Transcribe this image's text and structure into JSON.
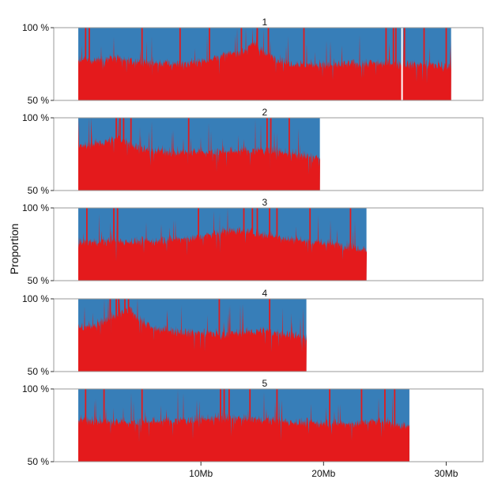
{
  "chart_data": {
    "type": "area",
    "ylabel": "Proportion",
    "ylim": [
      50,
      100
    ],
    "y_ticks": [
      "50 %",
      "100 %"
    ],
    "xlim_mb": [
      -2,
      33
    ],
    "x_ticks": [
      {
        "value": 10,
        "label": "10Mb"
      },
      {
        "value": 20,
        "label": "20Mb"
      },
      {
        "value": 30,
        "label": "30Mb"
      }
    ],
    "colors": {
      "lower": "#e41a1c",
      "upper": "#377eb8",
      "frame": "#999999"
    },
    "legend": "none",
    "grid": false,
    "panels": [
      {
        "title": "1",
        "length_mb": 30.4,
        "mean_pct": 77,
        "profile": [
          [
            0,
            77
          ],
          [
            2.9,
            79
          ],
          [
            5,
            76
          ],
          [
            9,
            75
          ],
          [
            13.5,
            84
          ],
          [
            14.3,
            90
          ],
          [
            15.2,
            82
          ],
          [
            17,
            76
          ],
          [
            20,
            74
          ],
          [
            24,
            76
          ],
          [
            27,
            75
          ],
          [
            30.4,
            74
          ]
        ],
        "gaps_mb": [
          26.4
        ],
        "full_red_mb": [
          0.6,
          0.9,
          5.2,
          8.3,
          10.7,
          13.3,
          14.6,
          15.5,
          18.4,
          25.1,
          25.7,
          25.9,
          26.6,
          28.2,
          30.0
        ]
      },
      {
        "title": "2",
        "length_mb": 19.7,
        "mean_pct": 76,
        "profile": [
          [
            0,
            80
          ],
          [
            2.5,
            84
          ],
          [
            3.4,
            86
          ],
          [
            5,
            79
          ],
          [
            8,
            76
          ],
          [
            12,
            77
          ],
          [
            15.5,
            78
          ],
          [
            17.5,
            75
          ],
          [
            19.7,
            72
          ]
        ],
        "gaps_mb": [],
        "full_red_mb": [
          3.1,
          3.4,
          3.7,
          4.3,
          9.0,
          15.4,
          15.7,
          17.2
        ]
      },
      {
        "title": "3",
        "length_mb": 23.5,
        "mean_pct": 77,
        "profile": [
          [
            0,
            76
          ],
          [
            2,
            77
          ],
          [
            6,
            77
          ],
          [
            10,
            80
          ],
          [
            12.5,
            85
          ],
          [
            14.5,
            83
          ],
          [
            17,
            79
          ],
          [
            20,
            76
          ],
          [
            23.5,
            72
          ]
        ],
        "gaps_mb": [],
        "full_red_mb": [
          0.7,
          2.9,
          3.2,
          9.8,
          13.5,
          14.2,
          14.6,
          15.6,
          16.2,
          18.9,
          22.2
        ]
      },
      {
        "title": "4",
        "length_mb": 18.6,
        "mean_pct": 78,
        "profile": [
          [
            0,
            80
          ],
          [
            1.5,
            82
          ],
          [
            3,
            88
          ],
          [
            4.2,
            92
          ],
          [
            6,
            80
          ],
          [
            9,
            77
          ],
          [
            12,
            76
          ],
          [
            15,
            78
          ],
          [
            18.6,
            74
          ]
        ],
        "gaps_mb": [],
        "full_red_mb": [
          2.6,
          3.1,
          3.3,
          3.8,
          4.1,
          11.5,
          15.6
        ]
      },
      {
        "title": "5",
        "length_mb": 27.0,
        "mean_pct": 77,
        "profile": [
          [
            0,
            79
          ],
          [
            3,
            77
          ],
          [
            7,
            78
          ],
          [
            11.5,
            80
          ],
          [
            15,
            79
          ],
          [
            18,
            77
          ],
          [
            22,
            76
          ],
          [
            24.5,
            78
          ],
          [
            27,
            74
          ]
        ],
        "gaps_mb": [],
        "full_red_mb": [
          0.6,
          2.1,
          5.2,
          11.6,
          11.9,
          12.3,
          14.0,
          16.2,
          20.5,
          23.1,
          25.0,
          25.8
        ]
      }
    ]
  }
}
